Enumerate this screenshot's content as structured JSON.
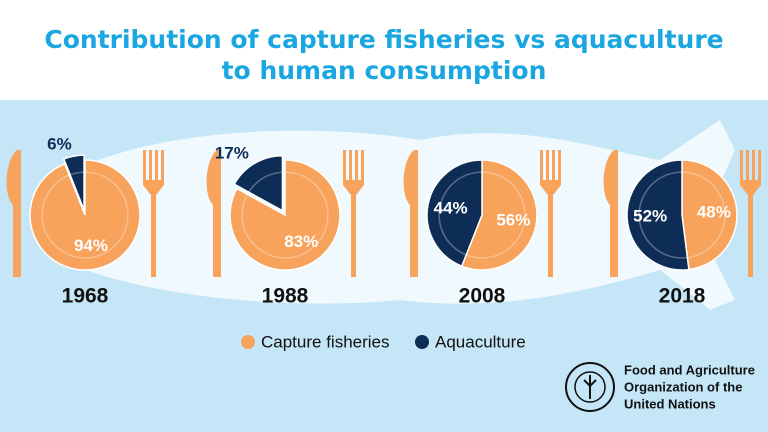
{
  "title": [
    "Contribution of capture fisheries vs aquaculture",
    "to human consumption"
  ],
  "legend": {
    "labels": [
      "Capture fisheries",
      "Aquaculture"
    ],
    "colors": [
      "#f7a35c",
      "#0d2d57"
    ]
  },
  "organization": [
    "Food and Agriculture",
    "Organization of the",
    "United Nations"
  ],
  "chart_data": [
    {
      "type": "pie",
      "title": "1968",
      "values": [
        94,
        6
      ],
      "value_labels": [
        "94%",
        "6%"
      ]
    },
    {
      "type": "pie",
      "title": "1988",
      "values": [
        83,
        17
      ],
      "value_labels": [
        "83%",
        "17%"
      ]
    },
    {
      "type": "pie",
      "title": "2008",
      "values": [
        56,
        44
      ],
      "value_labels": [
        "56%",
        "44%"
      ]
    },
    {
      "type": "pie",
      "title": "2018",
      "values": [
        48,
        52
      ],
      "value_labels": [
        "48%",
        "52%"
      ]
    }
  ]
}
